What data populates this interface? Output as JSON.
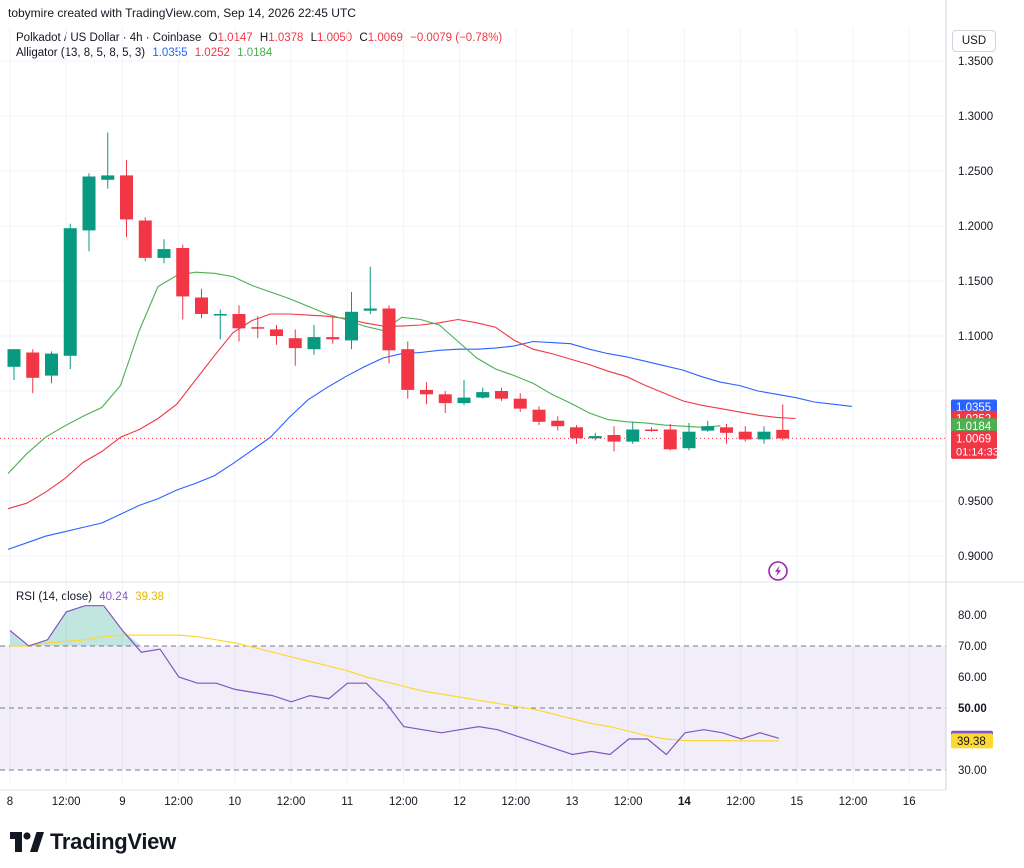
{
  "header": {
    "credit": "tobymire created with TradingView.com, Sep 14, 2026 22:45 UTC"
  },
  "legend": {
    "symbol": "Polkadot / US Dollar · 4h · Coinbase",
    "o_label": "O",
    "o_value": "1.0147",
    "h_label": "H",
    "h_value": "1.0378",
    "l_label": "L",
    "l_value": "1.0050",
    "c_label": "C",
    "c_value": "1.0069",
    "change": "−0.0079 (−0.78%)",
    "alligator_label": "Alligator (13, 8, 5, 8, 5, 3)",
    "alligator_jaw": "1.0355",
    "alligator_teeth": "1.0252",
    "alligator_lips": "1.0184",
    "rsi_label": "RSI (14, close)",
    "rsi_value": "40.24",
    "rsi_ma_value": "39.38"
  },
  "currency": "USD",
  "price_badges": {
    "jaw": "1.0355",
    "teeth": "1.0252",
    "lips": "1.0184",
    "last": "1.0069",
    "countdown": "01:14:33"
  },
  "rsi_badges": {
    "rsi": "40.24",
    "rsi_ma": "39.38"
  },
  "brand": "TradingView",
  "colors": {
    "up": "#089981",
    "down": "#f23645",
    "jaw": "#2962ff",
    "teeth": "#f23645",
    "lips": "#4caf50",
    "rsi": "#7e57c2",
    "rsi_ma": "#fdd835",
    "rsi_band": "#7e57c2",
    "grid": "#f0f3fa",
    "text": "#131722"
  },
  "chart_data": [
    {
      "type": "candlestick",
      "title": "Polkadot / US Dollar · 4h · Coinbase",
      "price_axis": {
        "ticks": [
          "1.3500",
          "1.3000",
          "1.2500",
          "1.2000",
          "1.1500",
          "1.1000",
          "0.9500",
          "0.9000"
        ],
        "ylim": [
          0.875,
          1.365
        ]
      },
      "time_axis": {
        "labels": [
          "8",
          "12:00",
          "9",
          "12:00",
          "10",
          "12:00",
          "11",
          "12:00",
          "12",
          "12:00",
          "13",
          "12:00",
          "14",
          "12:00",
          "15",
          "12:00",
          "16"
        ],
        "bold": [
          "14"
        ]
      },
      "last_price_line": 1.0069,
      "candles": [
        {
          "o": 1.072,
          "h": 1.088,
          "l": 1.06,
          "c": 1.088
        },
        {
          "o": 1.085,
          "h": 1.088,
          "l": 1.048,
          "c": 1.062
        },
        {
          "o": 1.064,
          "h": 1.086,
          "l": 1.057,
          "c": 1.084
        },
        {
          "o": 1.082,
          "h": 1.202,
          "l": 1.07,
          "c": 1.198
        },
        {
          "o": 1.196,
          "h": 1.248,
          "l": 1.177,
          "c": 1.245
        },
        {
          "o": 1.242,
          "h": 1.285,
          "l": 1.234,
          "c": 1.246
        },
        {
          "o": 1.246,
          "h": 1.26,
          "l": 1.19,
          "c": 1.206
        },
        {
          "o": 1.205,
          "h": 1.208,
          "l": 1.168,
          "c": 1.171
        },
        {
          "o": 1.171,
          "h": 1.188,
          "l": 1.166,
          "c": 1.179
        },
        {
          "o": 1.18,
          "h": 1.183,
          "l": 1.115,
          "c": 1.136
        },
        {
          "o": 1.135,
          "h": 1.143,
          "l": 1.116,
          "c": 1.12
        },
        {
          "o": 1.119,
          "h": 1.124,
          "l": 1.097,
          "c": 1.12
        },
        {
          "o": 1.12,
          "h": 1.128,
          "l": 1.095,
          "c": 1.107
        },
        {
          "o": 1.108,
          "h": 1.118,
          "l": 1.098,
          "c": 1.107
        },
        {
          "o": 1.106,
          "h": 1.11,
          "l": 1.092,
          "c": 1.1
        },
        {
          "o": 1.098,
          "h": 1.106,
          "l": 1.073,
          "c": 1.089
        },
        {
          "o": 1.088,
          "h": 1.11,
          "l": 1.083,
          "c": 1.099
        },
        {
          "o": 1.099,
          "h": 1.118,
          "l": 1.093,
          "c": 1.097
        },
        {
          "o": 1.096,
          "h": 1.14,
          "l": 1.088,
          "c": 1.122
        },
        {
          "o": 1.123,
          "h": 1.163,
          "l": 1.12,
          "c": 1.125
        },
        {
          "o": 1.125,
          "h": 1.128,
          "l": 1.075,
          "c": 1.087
        },
        {
          "o": 1.088,
          "h": 1.095,
          "l": 1.043,
          "c": 1.051
        },
        {
          "o": 1.051,
          "h": 1.058,
          "l": 1.038,
          "c": 1.047
        },
        {
          "o": 1.047,
          "h": 1.05,
          "l": 1.03,
          "c": 1.039
        },
        {
          "o": 1.039,
          "h": 1.06,
          "l": 1.037,
          "c": 1.044
        },
        {
          "o": 1.044,
          "h": 1.053,
          "l": 1.043,
          "c": 1.049
        },
        {
          "o": 1.05,
          "h": 1.053,
          "l": 1.041,
          "c": 1.043
        },
        {
          "o": 1.043,
          "h": 1.048,
          "l": 1.031,
          "c": 1.034
        },
        {
          "o": 1.033,
          "h": 1.036,
          "l": 1.019,
          "c": 1.022
        },
        {
          "o": 1.023,
          "h": 1.027,
          "l": 1.014,
          "c": 1.018
        },
        {
          "o": 1.017,
          "h": 1.019,
          "l": 1.002,
          "c": 1.007
        },
        {
          "o": 1.007,
          "h": 1.012,
          "l": 1.005,
          "c": 1.009
        },
        {
          "o": 1.01,
          "h": 1.018,
          "l": 0.995,
          "c": 1.004
        },
        {
          "o": 1.004,
          "h": 1.022,
          "l": 1.002,
          "c": 1.015
        },
        {
          "o": 1.015,
          "h": 1.017,
          "l": 1.013,
          "c": 1.014
        },
        {
          "o": 1.015,
          "h": 1.02,
          "l": 0.996,
          "c": 0.997
        },
        {
          "o": 0.998,
          "h": 1.021,
          "l": 0.996,
          "c": 1.013
        },
        {
          "o": 1.014,
          "h": 1.023,
          "l": 1.013,
          "c": 1.018
        },
        {
          "o": 1.017,
          "h": 1.02,
          "l": 1.002,
          "c": 1.012
        },
        {
          "o": 1.013,
          "h": 1.018,
          "l": 1.004,
          "c": 1.006
        },
        {
          "o": 1.006,
          "h": 1.018,
          "l": 1.002,
          "c": 1.013
        },
        {
          "o": 1.0147,
          "h": 1.0378,
          "l": 1.005,
          "c": 1.0069
        }
      ],
      "alligator": {
        "jaw": [
          0.906,
          0.912,
          0.918,
          0.922,
          0.926,
          0.93,
          0.938,
          0.946,
          0.952,
          0.96,
          0.966,
          0.973,
          0.984,
          0.996,
          1.008,
          1.026,
          1.042,
          1.053,
          1.063,
          1.072,
          1.08,
          1.084,
          1.085,
          1.087,
          1.088,
          1.088,
          1.089,
          1.091,
          1.095,
          1.094,
          1.093,
          1.088,
          1.084,
          1.081,
          1.077,
          1.073,
          1.069,
          1.063,
          1.058,
          1.055,
          1.05,
          1.047,
          1.044,
          1.04,
          1.038,
          1.036
        ],
        "teeth": [
          0.943,
          0.948,
          0.958,
          0.97,
          0.985,
          0.995,
          1.008,
          1.015,
          1.025,
          1.038,
          1.06,
          1.082,
          1.103,
          1.114,
          1.12,
          1.12,
          1.119,
          1.118,
          1.116,
          1.112,
          1.109,
          1.109,
          1.11,
          1.112,
          1.115,
          1.112,
          1.108,
          1.096,
          1.088,
          1.084,
          1.079,
          1.074,
          1.068,
          1.063,
          1.055,
          1.048,
          1.041,
          1.037,
          1.034,
          1.031,
          1.028,
          1.026,
          1.025
        ],
        "lips": [
          0.975,
          0.993,
          1.008,
          1.018,
          1.027,
          1.035,
          1.055,
          1.105,
          1.145,
          1.155,
          1.158,
          1.157,
          1.154,
          1.146,
          1.14,
          1.134,
          1.127,
          1.12,
          1.115,
          1.109,
          1.105,
          1.117,
          1.115,
          1.11,
          1.095,
          1.08,
          1.07,
          1.064,
          1.057,
          1.047,
          1.039,
          1.03,
          1.024,
          1.022,
          1.021,
          1.019,
          1.018,
          1.017,
          1.0184
        ]
      }
    },
    {
      "type": "line",
      "title": "RSI (14, close)",
      "ylim": [
        24,
        85
      ],
      "ticks": [
        "80.00",
        "70.00",
        "60.00",
        "50.00",
        "40.00",
        "30.00"
      ],
      "bands": {
        "upper": 70,
        "middle": 50,
        "lower": 30
      },
      "series": [
        {
          "name": "RSI",
          "values": [
            75,
            70,
            72,
            81,
            83,
            83,
            75,
            68,
            69,
            60,
            58,
            58,
            56,
            55,
            54,
            52,
            54,
            53,
            58,
            58,
            52,
            44,
            43,
            42,
            43,
            44,
            43,
            41,
            39,
            37,
            35,
            36,
            35,
            40,
            40,
            35,
            42,
            43,
            42,
            40,
            42,
            40.24
          ]
        },
        {
          "name": "RSI MA",
          "values": [
            70,
            70,
            71,
            71.5,
            72,
            73,
            73.5,
            73.5,
            73.5,
            73.5,
            73,
            72,
            71,
            69.5,
            68,
            66.5,
            65,
            63.5,
            62,
            60,
            58.5,
            57,
            55.5,
            54.5,
            53.5,
            52.5,
            51.5,
            50.5,
            49.5,
            48,
            46.5,
            45,
            44,
            42.5,
            41,
            40,
            39.5,
            39.5,
            39.5,
            39.4,
            39.4,
            39.38
          ]
        }
      ]
    }
  ]
}
